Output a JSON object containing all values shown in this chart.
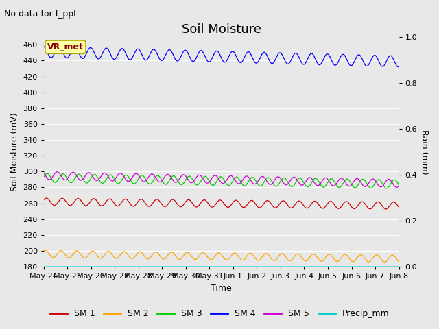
{
  "title": "Soil Moisture",
  "subtitle": "No data for f_ppt",
  "ylabel_left": "Soil Moisture (mV)",
  "ylabel_right": "Rain (mm)",
  "xlabel": "Time",
  "annotation": "VR_met",
  "background_color": "#e8e8e8",
  "plot_bg_color": "#e8e8e8",
  "ylim_left": [
    180,
    470
  ],
  "ylim_right": [
    0.0,
    1.0
  ],
  "yticks_left": [
    180,
    200,
    220,
    240,
    260,
    280,
    300,
    320,
    340,
    360,
    380,
    400,
    420,
    440,
    460
  ],
  "yticks_right": [
    0.0,
    0.2,
    0.4,
    0.6,
    0.8,
    1.0
  ],
  "n_points": 1500,
  "n_days": 15,
  "series": {
    "SM1": {
      "color": "#cc0000",
      "base": 262,
      "amplitude": 4.5,
      "trend": -5,
      "freq_per_day": 1.5,
      "phase": 0.5
    },
    "SM2": {
      "color": "#ffa500",
      "base": 196,
      "amplitude": 4.5,
      "trend": -6,
      "freq_per_day": 1.5,
      "phase": 1.0
    },
    "SM3": {
      "color": "#00cc00",
      "base": 292,
      "amplitude": 5.5,
      "trend": -8,
      "freq_per_day": 1.5,
      "phase": 0.2
    },
    "SM4": {
      "color": "#0000ff",
      "base": 451,
      "amplitude": 7.0,
      "trend": -12,
      "freq_per_day": 1.5,
      "phase": 1.8
    },
    "SM5": {
      "color": "#cc00cc",
      "base": 295,
      "amplitude": 5.0,
      "trend": -10,
      "freq_per_day": 1.5,
      "phase": 2.5
    },
    "Precip_mm": {
      "color": "#00cccc",
      "base": 180,
      "amplitude": 0,
      "trend": 0,
      "freq_per_day": 0,
      "phase": 0
    }
  },
  "legend_entries": [
    {
      "label": "SM 1",
      "color": "#cc0000"
    },
    {
      "label": "SM 2",
      "color": "#ffa500"
    },
    {
      "label": "SM 3",
      "color": "#00cc00"
    },
    {
      "label": "SM 4",
      "color": "#0000ff"
    },
    {
      "label": "SM 5",
      "color": "#cc00cc"
    },
    {
      "label": "Precip_mm",
      "color": "#00cccc"
    }
  ],
  "xtick_labels": [
    "May 24",
    "May 25",
    "May 26",
    "May 27",
    "May 28",
    "May 29",
    "May 30",
    "May 31",
    "Jun 1",
    "Jun 2",
    "Jun 3",
    "Jun 4",
    "Jun 5",
    "Jun 6",
    "Jun 7",
    "Jun 8"
  ],
  "title_fontsize": 13,
  "label_fontsize": 9,
  "tick_fontsize": 8,
  "legend_fontsize": 9,
  "subtitle_fontsize": 9,
  "annotation_fontsize": 9
}
